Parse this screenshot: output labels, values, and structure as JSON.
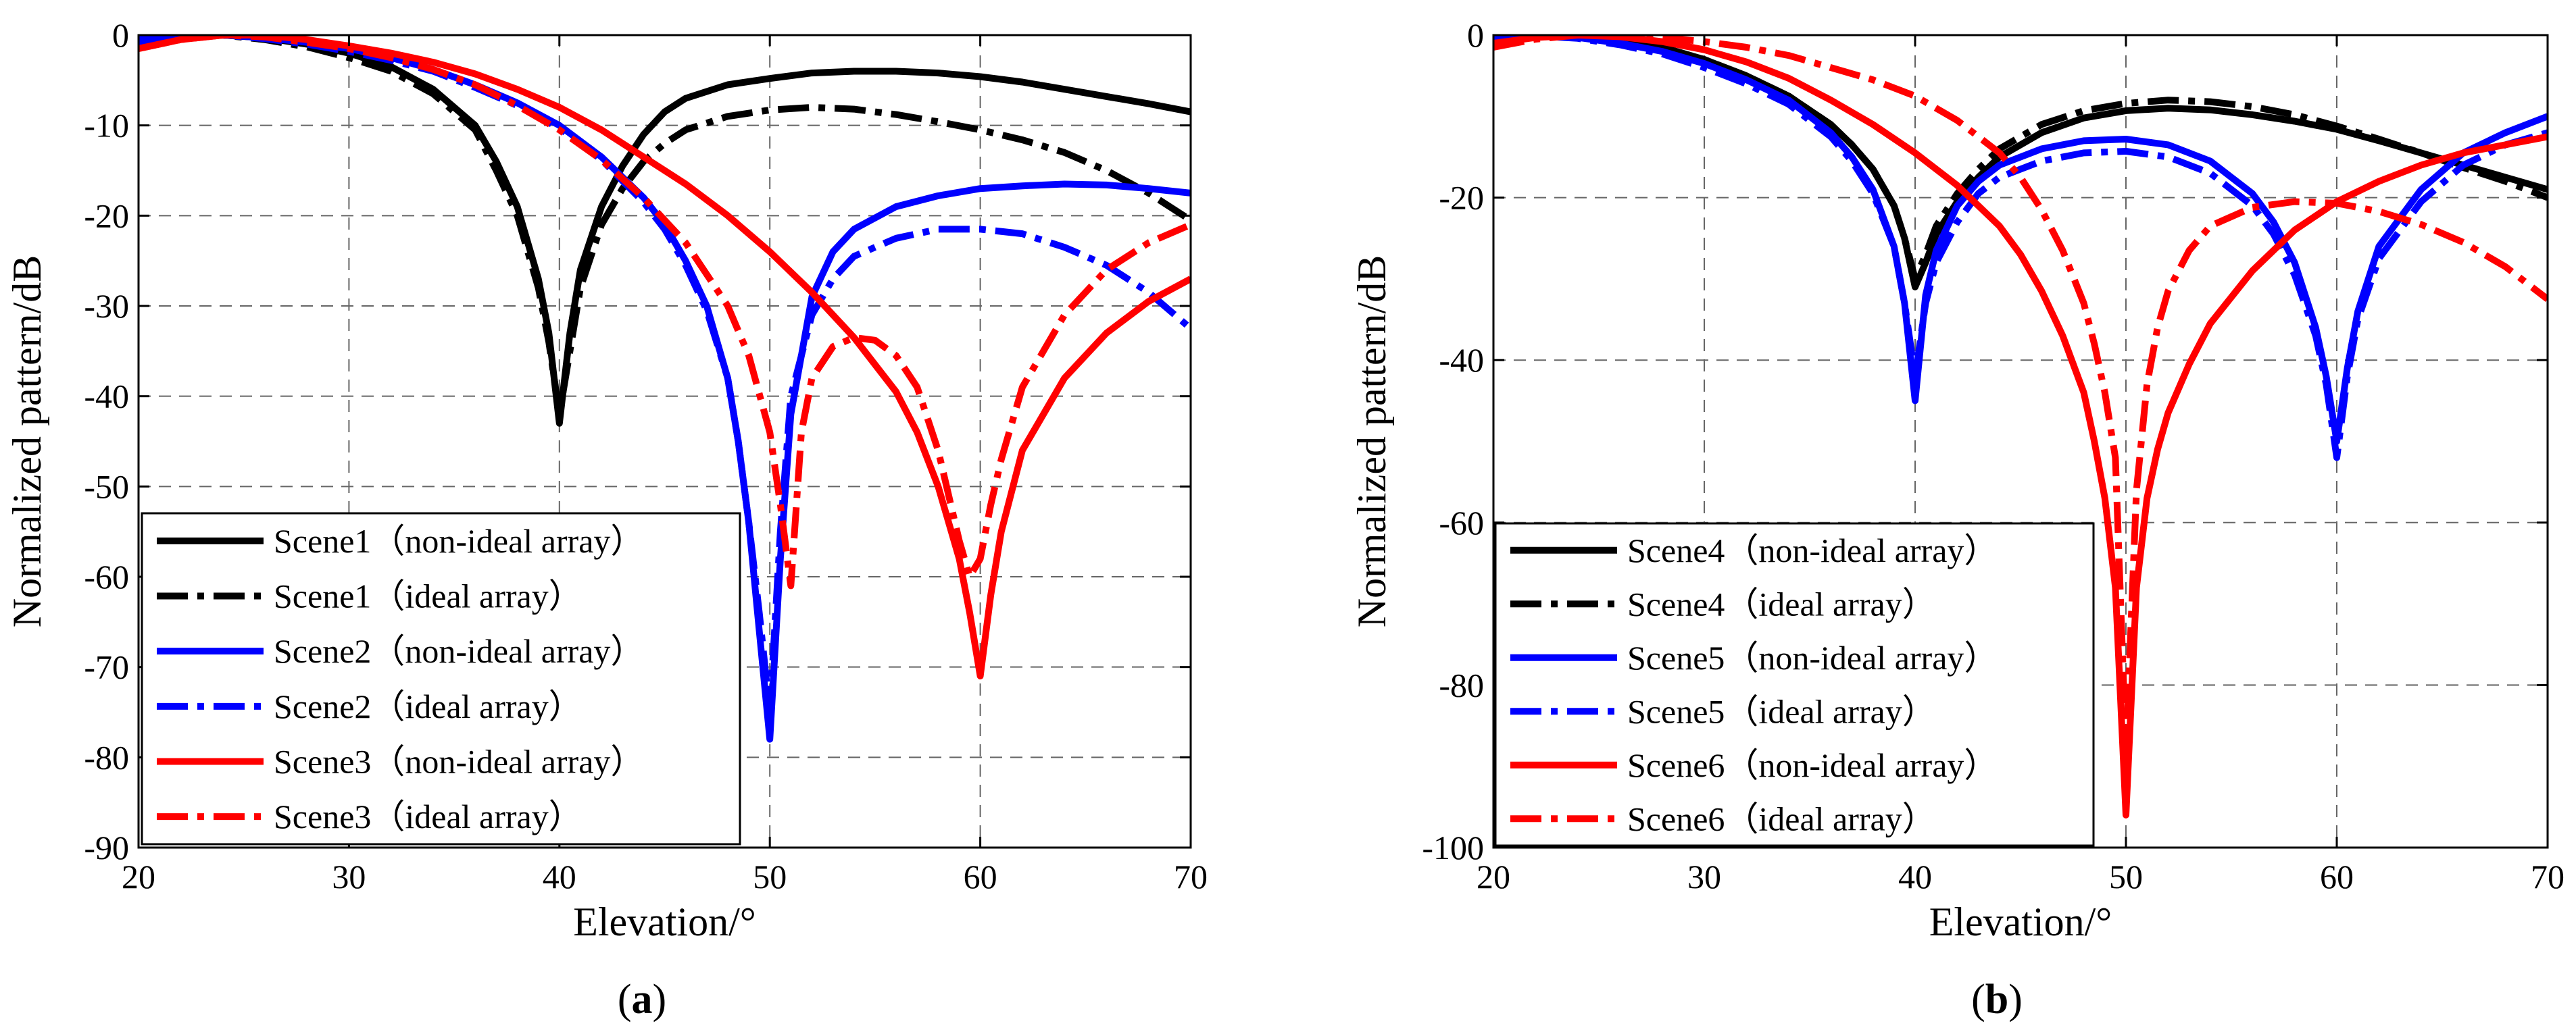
{
  "figure": {
    "panels": [
      {
        "label_open": "(",
        "label_letter": "a",
        "label_close": ")"
      },
      {
        "label_open": "(",
        "label_letter": "b",
        "label_close": ")"
      }
    ]
  },
  "chart_data": [
    {
      "type": "line",
      "panel": "a",
      "xlabel": "Elevation/°",
      "ylabel": "Normalized pattern/dB",
      "xlim": [
        20,
        70
      ],
      "ylim": [
        -90,
        0
      ],
      "xticks": [
        20,
        30,
        40,
        50,
        60,
        70
      ],
      "yticks": [
        0,
        -10,
        -20,
        -30,
        -40,
        -50,
        -60,
        -70,
        -80,
        -90
      ],
      "grid": true,
      "legend_position": "bottom-left",
      "series": [
        {
          "name": "Scene1（non-ideal array）",
          "color": "#000000",
          "style": "solid",
          "x": [
            20,
            22,
            24,
            26,
            28,
            30,
            32,
            34,
            36,
            37,
            38,
            39,
            39.5,
            40,
            40.5,
            41,
            42,
            43,
            44,
            45,
            46,
            48,
            50,
            52,
            54,
            56,
            58,
            60,
            62,
            64,
            66,
            68,
            70
          ],
          "y": [
            -0.5,
            0,
            0,
            -0.3,
            -1,
            -2,
            -3.5,
            -6,
            -10,
            -14,
            -19,
            -27,
            -33,
            -43,
            -33,
            -26,
            -19,
            -14.5,
            -11,
            -8.5,
            -7,
            -5.5,
            -4.8,
            -4.2,
            -4,
            -4,
            -4.2,
            -4.6,
            -5.2,
            -6,
            -6.8,
            -7.6,
            -8.5
          ]
        },
        {
          "name": "Scene1（ideal array）",
          "color": "#000000",
          "style": "dashdot",
          "x": [
            20,
            22,
            24,
            26,
            28,
            30,
            32,
            34,
            36,
            37,
            38,
            39,
            39.5,
            40,
            40.5,
            41,
            42,
            43,
            44,
            45,
            46,
            48,
            50,
            52,
            54,
            56,
            58,
            60,
            62,
            64,
            66,
            68,
            70
          ],
          "y": [
            -1,
            -0.2,
            0,
            -0.5,
            -1.3,
            -2.5,
            -4,
            -6.5,
            -10.5,
            -15,
            -20,
            -28,
            -34,
            -42,
            -35,
            -28,
            -21,
            -17,
            -14,
            -12,
            -10.5,
            -9,
            -8.3,
            -8,
            -8.2,
            -8.8,
            -9.6,
            -10.5,
            -11.6,
            -13,
            -15,
            -17.5,
            -20.5
          ]
        },
        {
          "name": "Scene2（non-ideal array）",
          "color": "#0000ff",
          "style": "solid",
          "x": [
            20,
            22,
            24,
            26,
            28,
            30,
            32,
            34,
            36,
            38,
            40,
            42,
            44,
            45,
            46,
            47,
            48,
            48.5,
            49,
            49.5,
            50,
            50.5,
            51,
            52,
            53,
            54,
            56,
            58,
            60,
            62,
            64,
            66,
            68,
            70
          ],
          "y": [
            -0.5,
            0,
            0,
            -0.3,
            -0.8,
            -1.5,
            -2.5,
            -3.8,
            -5.5,
            -7.5,
            -10,
            -13.5,
            -18,
            -21,
            -25,
            -30,
            -38,
            -45,
            -54,
            -66,
            -78,
            -58,
            -42,
            -29,
            -24,
            -21.5,
            -19,
            -17.8,
            -17,
            -16.7,
            -16.5,
            -16.6,
            -17,
            -17.5
          ]
        },
        {
          "name": "Scene2（ideal array）",
          "color": "#0000ff",
          "style": "dashdot",
          "x": [
            20,
            22,
            24,
            26,
            28,
            30,
            32,
            34,
            36,
            38,
            40,
            42,
            44,
            45,
            46,
            47,
            48,
            48.5,
            49,
            49.5,
            50,
            50.5,
            51,
            52,
            53,
            54,
            56,
            58,
            60,
            62,
            64,
            66,
            68,
            70
          ],
          "y": [
            -0.8,
            -0.1,
            0,
            -0.4,
            -1,
            -1.8,
            -2.8,
            -4,
            -5.8,
            -7.8,
            -10.3,
            -13.8,
            -18.5,
            -21.5,
            -25.5,
            -30.5,
            -38,
            -45,
            -54,
            -64,
            -75,
            -55,
            -40,
            -31,
            -27,
            -24.5,
            -22.5,
            -21.5,
            -21.5,
            -22,
            -23.5,
            -25.5,
            -28.5,
            -32.5
          ]
        },
        {
          "name": "Scene3（non-ideal array）",
          "color": "#ff0000",
          "style": "solid",
          "x": [
            20,
            22,
            24,
            26,
            28,
            30,
            32,
            34,
            36,
            38,
            40,
            42,
            44,
            46,
            48,
            50,
            52,
            54,
            56,
            57,
            58,
            59,
            59.5,
            60,
            60.5,
            61,
            62,
            64,
            66,
            68,
            70
          ],
          "y": [
            -1.5,
            -0.5,
            0,
            0,
            -0.5,
            -1.2,
            -2,
            -3,
            -4.3,
            -6,
            -8,
            -10.5,
            -13.5,
            -16.5,
            -20,
            -24,
            -28.5,
            -33.5,
            -39.5,
            -44,
            -50,
            -58,
            -64,
            -71,
            -62,
            -55,
            -46,
            -38,
            -33,
            -29.5,
            -27
          ]
        },
        {
          "name": "Scene3（ideal array）",
          "color": "#ff0000",
          "style": "dashdot",
          "x": [
            20,
            22,
            24,
            26,
            28,
            30,
            32,
            34,
            36,
            38,
            40,
            42,
            44,
            46,
            48,
            49,
            50,
            50.5,
            51,
            51.5,
            52,
            53,
            54,
            55,
            56,
            57,
            58,
            59,
            59.5,
            60,
            60.5,
            61,
            62,
            64,
            66,
            68,
            70
          ],
          "y": [
            -1.5,
            -0.5,
            0,
            -0.2,
            -0.8,
            -1.5,
            -2.5,
            -3.8,
            -5.5,
            -7.8,
            -10.5,
            -13.8,
            -18,
            -23,
            -30,
            -35.5,
            -44,
            -52,
            -61,
            -44,
            -38,
            -34.5,
            -33.5,
            -33.8,
            -35.5,
            -39,
            -46,
            -56,
            -60,
            -58,
            -52,
            -47,
            -39,
            -31,
            -26,
            -23,
            -21
          ]
        }
      ]
    },
    {
      "type": "line",
      "panel": "b",
      "xlabel": "Elevation/°",
      "ylabel": "Normalized pattern/dB",
      "xlim": [
        20,
        70
      ],
      "ylim": [
        -100,
        0
      ],
      "xticks": [
        20,
        30,
        40,
        50,
        60,
        70
      ],
      "yticks": [
        0,
        -20,
        -40,
        -60,
        -80,
        -100
      ],
      "grid": true,
      "legend_position": "bottom-left",
      "series": [
        {
          "name": "Scene4（non-ideal array）",
          "color": "#000000",
          "style": "solid",
          "x": [
            20,
            22,
            24,
            26,
            28,
            30,
            32,
            34,
            36,
            37,
            38,
            39,
            39.5,
            40,
            40.5,
            41,
            42,
            43,
            44,
            46,
            48,
            50,
            52,
            54,
            56,
            58,
            60,
            62,
            64,
            66,
            68,
            70
          ],
          "y": [
            -0.5,
            0,
            0,
            -0.5,
            -1.5,
            -3,
            -5,
            -7.5,
            -11,
            -13.5,
            -16.5,
            -21,
            -25,
            -31,
            -28,
            -24.5,
            -20.5,
            -17.5,
            -15,
            -12,
            -10.2,
            -9.3,
            -9,
            -9.2,
            -9.8,
            -10.6,
            -11.6,
            -13,
            -14.5,
            -16,
            -17.5,
            -19
          ]
        },
        {
          "name": "Scene4（ideal array）",
          "color": "#000000",
          "style": "dashdot",
          "x": [
            20,
            22,
            24,
            26,
            28,
            30,
            32,
            34,
            36,
            37,
            38,
            39,
            39.5,
            40,
            40.5,
            41,
            42,
            43,
            44,
            46,
            48,
            50,
            52,
            54,
            56,
            58,
            60,
            62,
            64,
            66,
            68,
            70
          ],
          "y": [
            -0.5,
            0,
            0,
            -0.5,
            -1.5,
            -3,
            -5,
            -7.5,
            -11,
            -13.5,
            -16.5,
            -21,
            -25,
            -30,
            -27,
            -23.5,
            -19.5,
            -16.5,
            -14,
            -11,
            -9.3,
            -8.4,
            -8,
            -8.2,
            -8.8,
            -9.8,
            -11.2,
            -12.8,
            -14.5,
            -16.3,
            -18,
            -20
          ]
        },
        {
          "name": "Scene5（non-ideal array）",
          "color": "#0000ff",
          "style": "solid",
          "x": [
            20,
            22,
            24,
            26,
            28,
            30,
            32,
            34,
            36,
            37,
            38,
            39,
            39.5,
            40,
            40.5,
            41,
            42,
            43,
            44,
            46,
            48,
            50,
            52,
            54,
            56,
            57,
            58,
            59,
            59.5,
            60,
            60.5,
            61,
            62,
            64,
            66,
            68,
            70
          ],
          "y": [
            -0.2,
            0,
            -0.3,
            -1,
            -2,
            -3.5,
            -5.5,
            -8,
            -12,
            -15,
            -19,
            -26,
            -33,
            -45,
            -32,
            -26.5,
            -21,
            -18,
            -16,
            -14,
            -13,
            -12.8,
            -13.5,
            -15.5,
            -19.5,
            -23,
            -28,
            -36,
            -42,
            -50,
            -41,
            -34,
            -26,
            -19,
            -14.5,
            -12,
            -10
          ]
        },
        {
          "name": "Scene5（ideal array）",
          "color": "#0000ff",
          "style": "dashdot",
          "x": [
            20,
            22,
            24,
            26,
            28,
            30,
            32,
            34,
            36,
            37,
            38,
            39,
            39.5,
            40,
            40.5,
            41,
            42,
            43,
            44,
            46,
            48,
            50,
            52,
            54,
            56,
            57,
            58,
            59,
            59.5,
            60,
            60.5,
            61,
            62,
            64,
            66,
            68,
            70
          ],
          "y": [
            -0.3,
            -0.1,
            -0.4,
            -1.2,
            -2.3,
            -4,
            -6,
            -8.5,
            -12.5,
            -15.5,
            -19.5,
            -26,
            -33,
            -42,
            -33,
            -28,
            -23,
            -19.5,
            -17.5,
            -15.5,
            -14.5,
            -14.3,
            -15,
            -17,
            -21,
            -24.5,
            -29.5,
            -37,
            -43,
            -52,
            -42,
            -35,
            -27.5,
            -20.5,
            -16,
            -13.5,
            -12
          ]
        },
        {
          "name": "Scene6（non-ideal array）",
          "color": "#ff0000",
          "style": "solid",
          "x": [
            20,
            22,
            24,
            26,
            28,
            30,
            32,
            34,
            36,
            38,
            40,
            42,
            44,
            45,
            46,
            47,
            48,
            48.5,
            49,
            49.5,
            50,
            50.5,
            51,
            51.5,
            52,
            53,
            54,
            56,
            58,
            60,
            62,
            64,
            66,
            68,
            70
          ],
          "y": [
            -1,
            -0.3,
            0,
            -0.2,
            -0.8,
            -1.8,
            -3.3,
            -5.3,
            -8,
            -11,
            -14.5,
            -18.5,
            -23.5,
            -27,
            -31.5,
            -37,
            -44,
            -50,
            -57,
            -68,
            -96,
            -68,
            -57,
            -51,
            -46.5,
            -40.5,
            -35.5,
            -29,
            -24,
            -20.5,
            -18,
            -16,
            -14.5,
            -13.5,
            -12.5
          ]
        },
        {
          "name": "Scene6（ideal array）",
          "color": "#ff0000",
          "style": "dashdot",
          "x": [
            20,
            22,
            24,
            26,
            28,
            30,
            32,
            34,
            36,
            38,
            40,
            42,
            44,
            45,
            46,
            47,
            48,
            48.5,
            49,
            49.5,
            50,
            50.5,
            51,
            51.5,
            52,
            53,
            54,
            56,
            58,
            60,
            62,
            64,
            66,
            68,
            70
          ],
          "y": [
            -1.5,
            -0.5,
            0,
            0,
            -0.3,
            -0.8,
            -1.5,
            -2.5,
            -4,
            -5.5,
            -7.5,
            -10.5,
            -14.5,
            -17.5,
            -21.5,
            -26.5,
            -33,
            -38,
            -44,
            -52,
            -88,
            -56,
            -43,
            -36,
            -31.5,
            -26.5,
            -23.5,
            -21.2,
            -20.5,
            -20.7,
            -21.7,
            -23.3,
            -25.5,
            -28.5,
            -32.5
          ]
        }
      ]
    }
  ]
}
